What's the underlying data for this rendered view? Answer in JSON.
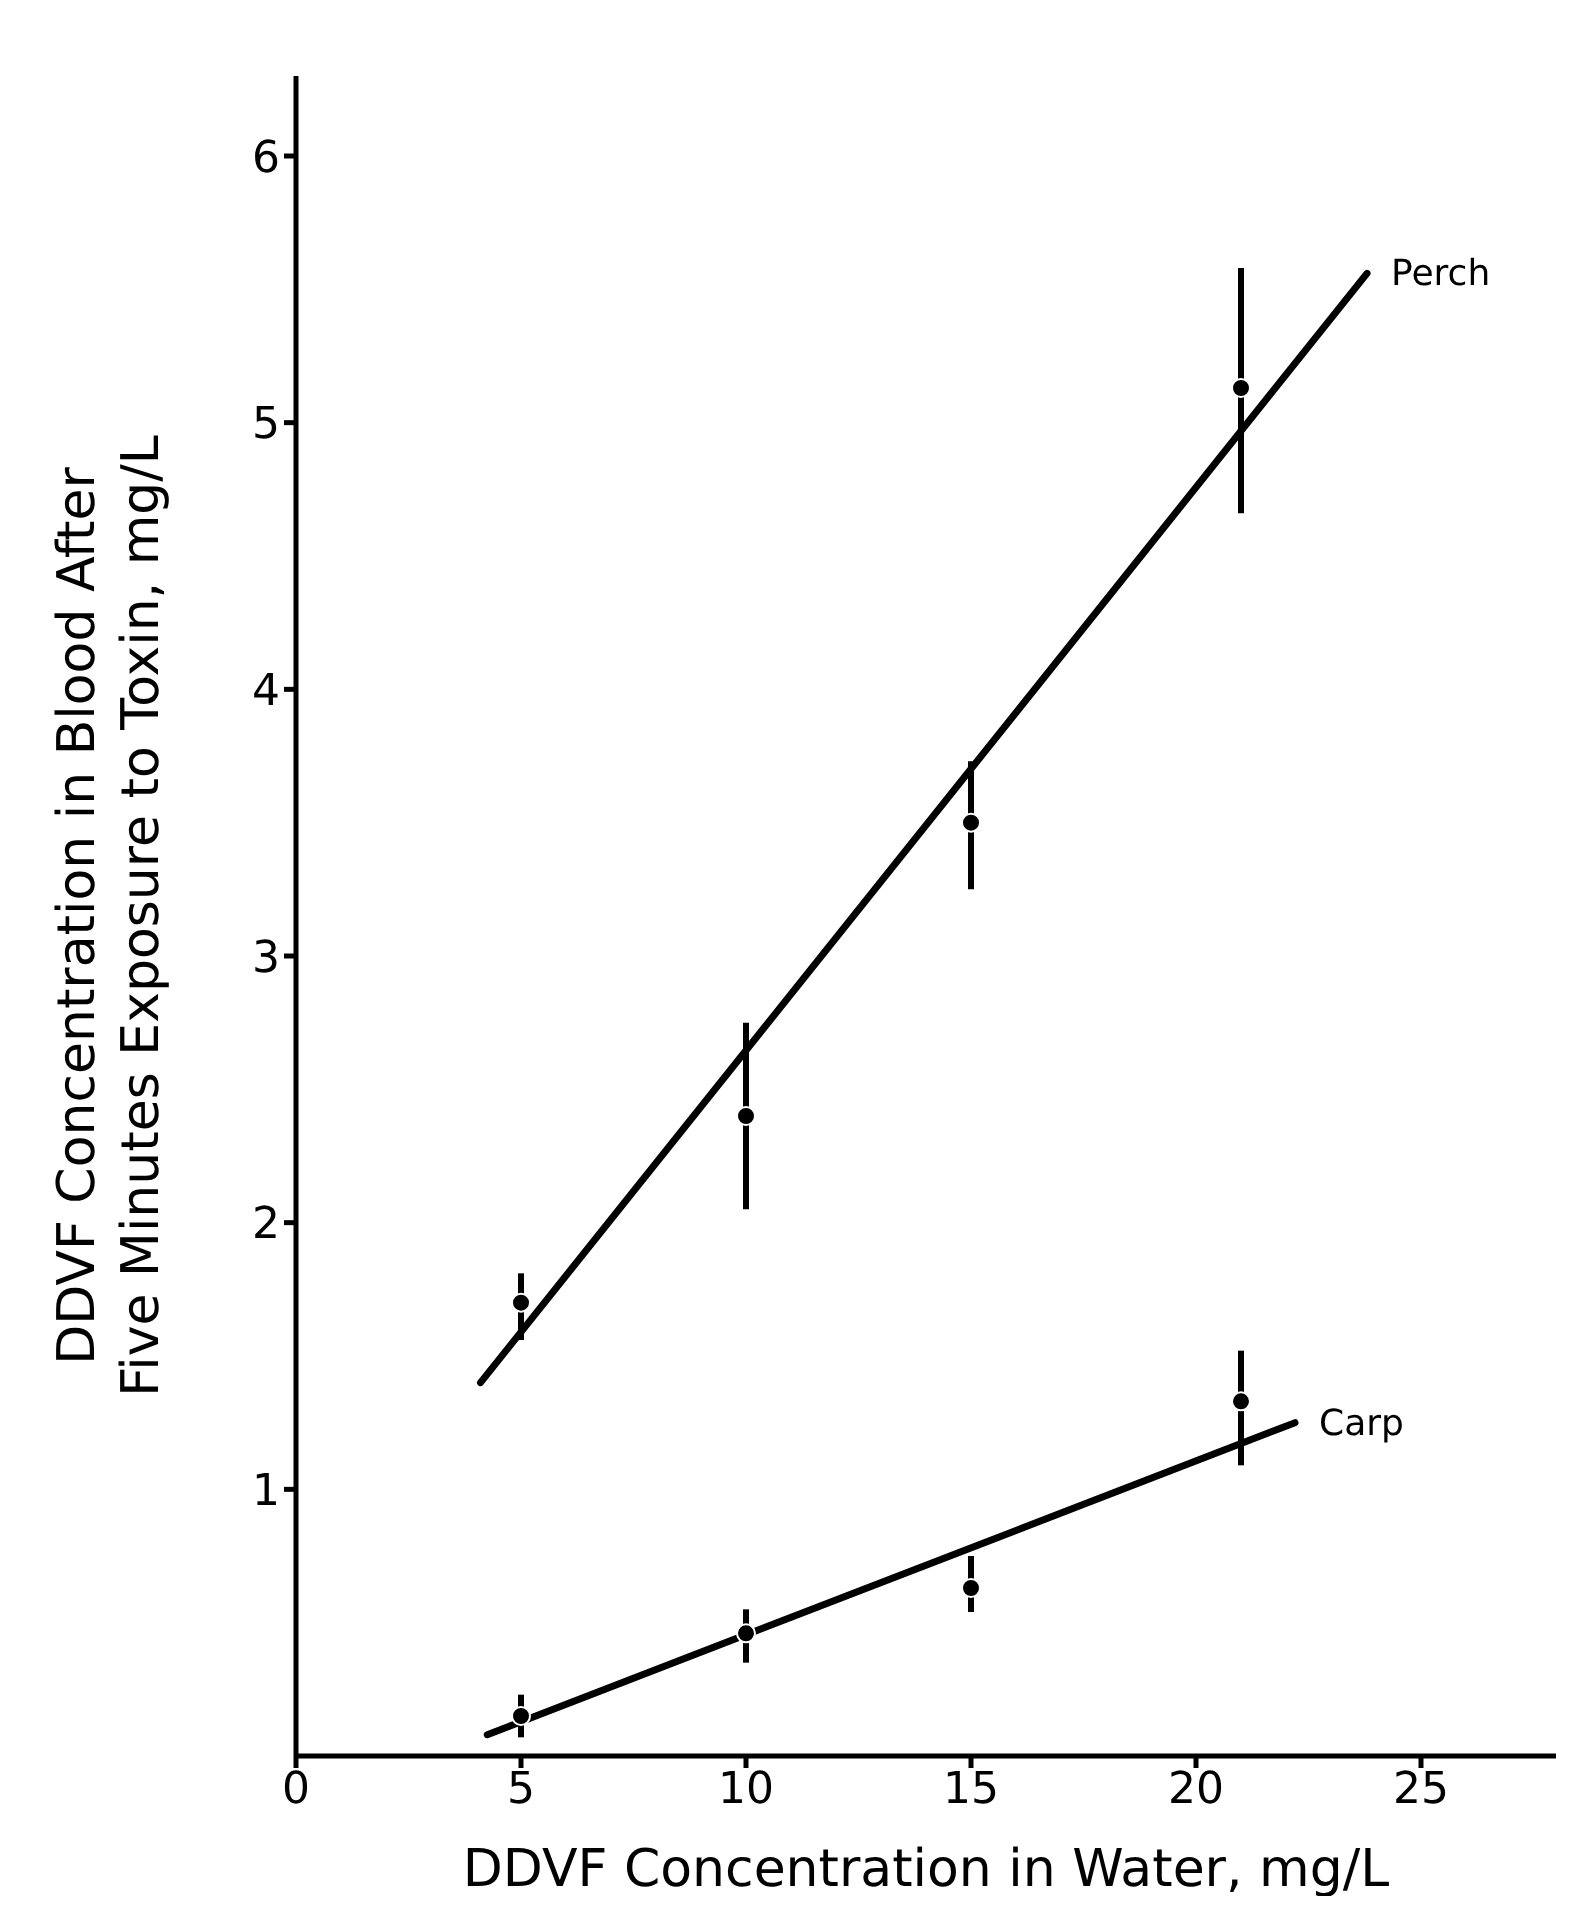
{
  "chart_data": {
    "type": "scatter",
    "xlabel": "DDVF Concentration in Water, mg/L",
    "ylabel": "DDVF Concentration in Blood After\nFive Minutes Exposure to Toxin, mg/L",
    "xlim": [
      0,
      28
    ],
    "ylim": [
      0,
      6.3
    ],
    "xticks": [
      0,
      5,
      10,
      15,
      20,
      25
    ],
    "yticks": [
      1,
      2,
      3,
      4,
      5,
      6
    ],
    "marker": "circle",
    "series": [
      {
        "color": "#000000",
        "x": [
          5,
          10,
          15,
          21
        ],
        "values": [
          1.7,
          2.4,
          3.5,
          5.13
        ],
        "errors": [
          [
            1.56,
            1.81
          ],
          [
            2.05,
            2.75
          ],
          [
            3.25,
            3.73
          ],
          [
            4.66,
            5.58
          ]
        ]
      },
      {
        "color": "#000000",
        "x": [
          5,
          10,
          15,
          21
        ],
        "values": [
          0.15,
          0.46,
          0.63,
          1.33
        ],
        "errors": [
          [
            0.07,
            0.23
          ],
          [
            0.35,
            0.55
          ],
          [
            0.54,
            0.75
          ],
          [
            1.09,
            1.52
          ]
        ]
      },
      {
        "type": "line",
        "name": "Perch",
        "color": "#000000",
        "marker": "none",
        "line_style": "solid",
        "x": [
          4.1,
          23.8
        ],
        "values": [
          1.4,
          5.56
        ]
      },
      {
        "type": "line",
        "name": "Carp",
        "color": "#000000",
        "marker": "none",
        "line_style": "solid",
        "x": [
          4.25,
          22.2
        ],
        "values": [
          0.08,
          1.25
        ]
      }
    ]
  }
}
